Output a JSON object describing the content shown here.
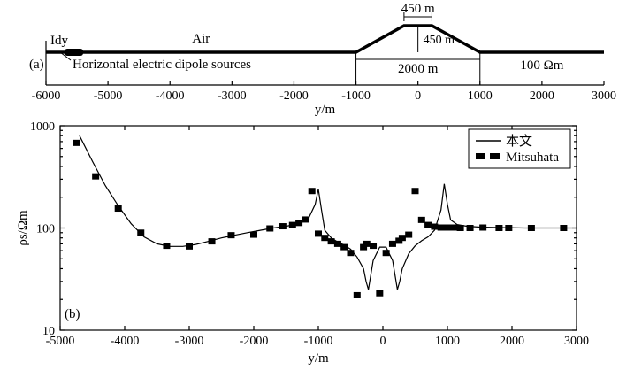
{
  "chart_data": [
    {
      "type": "diagram",
      "panel_label": "(a)",
      "air_label": "Air",
      "source_label": "Horizontal electric dipole sources",
      "source_symbol": "Idy",
      "resistivity_label": "100 Ωm",
      "hill": {
        "top_width_label": "450 m",
        "height_label": "450 m",
        "base_width_label": "2000 m",
        "base": [
          -1000,
          1000
        ],
        "top": [
          -225,
          225
        ]
      },
      "source_position": [
        -5700,
        -5400
      ],
      "xlim": [
        -6000,
        3000
      ],
      "xticks": [
        -6000,
        -5000,
        -4000,
        -3000,
        -2000,
        -1000,
        0,
        1000,
        2000,
        3000
      ],
      "xlabel": "y/m"
    },
    {
      "type": "line",
      "panel_label": "(b)",
      "xlabel": "y/m",
      "ylabel": "ρs/Ωm",
      "xlim": [
        -5000,
        3000
      ],
      "ylim": [
        10,
        1000
      ],
      "yscale": "log",
      "xticks": [
        -5000,
        -4000,
        -3000,
        -2000,
        -1000,
        0,
        1000,
        2000,
        3000
      ],
      "yticks": [
        10,
        100,
        1000
      ],
      "legend": {
        "position": "top-right",
        "entries": [
          "本文",
          "Mitsuhata"
        ]
      },
      "series": [
        {
          "name": "本文",
          "style": "line",
          "x": [
            -4700,
            -4500,
            -4300,
            -4100,
            -3900,
            -3700,
            -3500,
            -3300,
            -3100,
            -2900,
            -2700,
            -2500,
            -2300,
            -2100,
            -1900,
            -1700,
            -1500,
            -1300,
            -1150,
            -1050,
            -1000,
            -950,
            -900,
            -800,
            -700,
            -600,
            -500,
            -400,
            -300,
            -260,
            -225,
            -150,
            -50,
            50,
            150,
            225,
            260,
            300,
            400,
            500,
            600,
            700,
            800,
            900,
            950,
            1000,
            1050,
            1150,
            1300,
            1500,
            1800,
            2200,
            2600,
            3000
          ],
          "values": [
            800,
            450,
            260,
            165,
            110,
            82,
            70,
            66,
            66,
            69,
            74,
            80,
            85,
            90,
            95,
            100,
            104,
            110,
            125,
            170,
            240,
            150,
            95,
            80,
            73,
            68,
            62,
            52,
            40,
            30,
            25,
            48,
            65,
            65,
            48,
            25,
            30,
            40,
            56,
            67,
            75,
            82,
            95,
            150,
            270,
            170,
            120,
            108,
            104,
            102,
            101,
            100,
            100,
            100
          ]
        },
        {
          "name": "Mitsuhata",
          "style": "markers",
          "x": [
            -4750,
            -4450,
            -4100,
            -3750,
            -3350,
            -3000,
            -2650,
            -2350,
            -2000,
            -1750,
            -1550,
            -1400,
            -1300,
            -1200,
            -1100,
            -1000,
            -900,
            -800,
            -700,
            -600,
            -500,
            -400,
            -300,
            -250,
            -150,
            -50,
            50,
            150,
            250,
            300,
            400,
            500,
            600,
            700,
            800,
            900,
            1000,
            1100,
            1200,
            1350,
            1550,
            1800,
            1950,
            2300,
            2800
          ],
          "values": [
            680,
            320,
            155,
            90,
            67,
            66,
            74,
            85,
            86,
            99,
            104,
            107,
            112,
            121,
            230,
            88,
            80,
            74,
            70,
            65,
            57,
            22,
            65,
            70,
            67,
            23,
            57,
            70,
            75,
            80,
            86,
            230,
            120,
            107,
            103,
            101,
            101,
            101,
            100,
            100,
            101,
            100,
            100,
            100,
            100
          ]
        }
      ]
    }
  ]
}
